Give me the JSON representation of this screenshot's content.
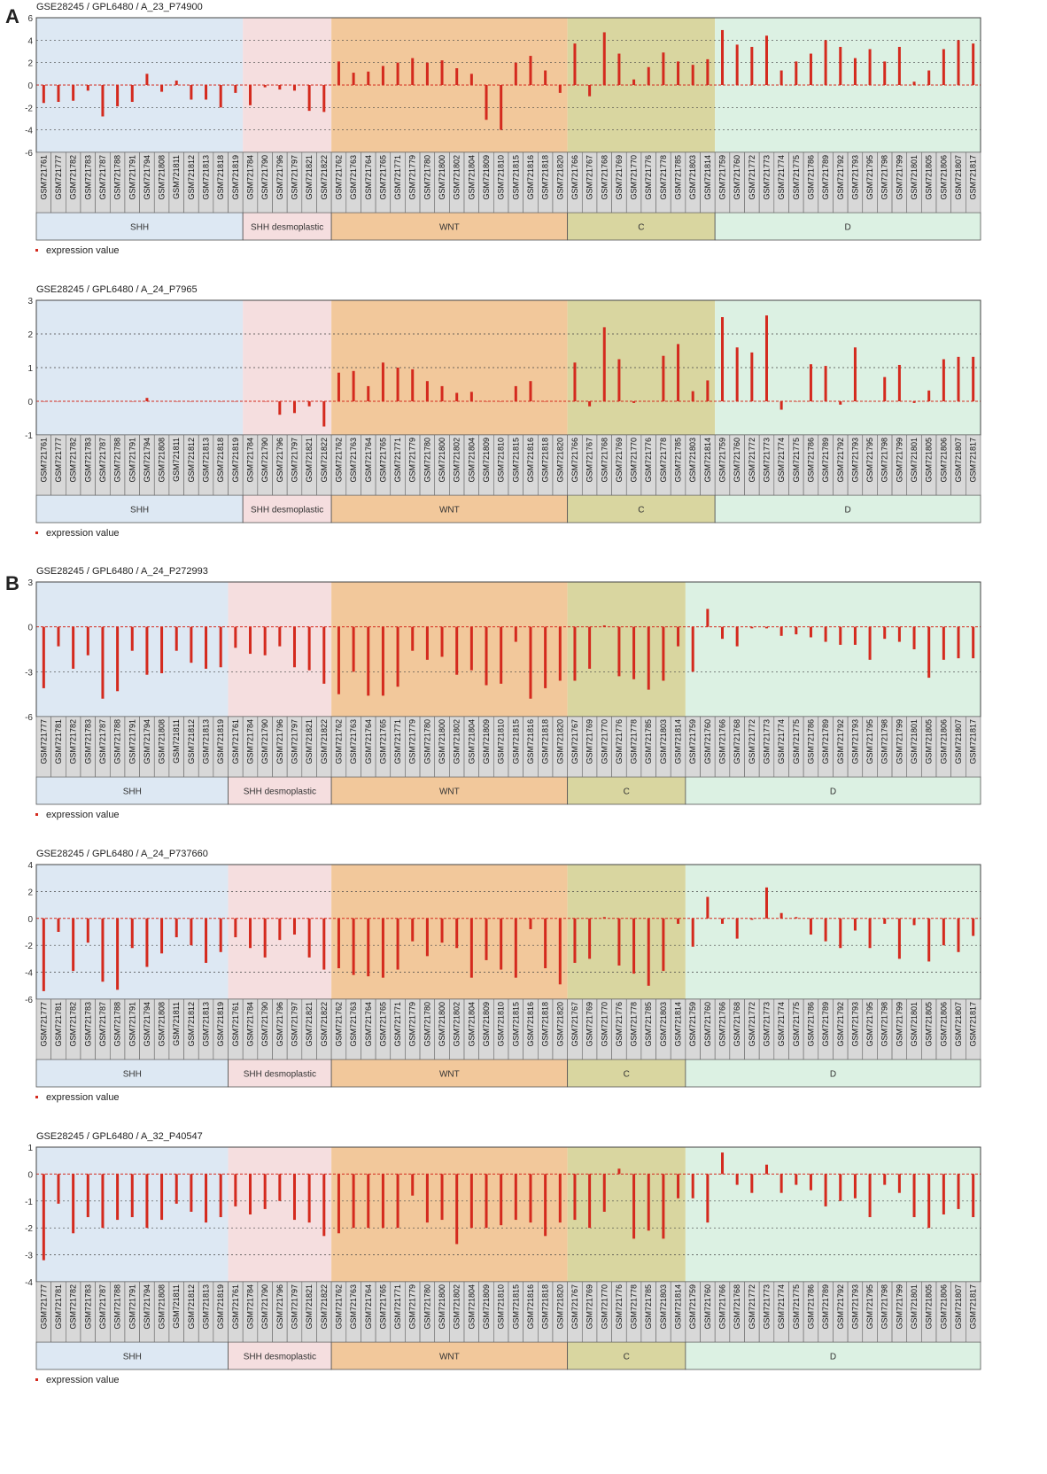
{
  "panel_labels": [
    "A",
    "B"
  ],
  "group_colors": {
    "SHH": "#dde8f3",
    "SHH desmoplastic": "#f5dedf",
    "WNT": "#f2c89b",
    "C": "#d9d6a0",
    "D": "#dcf1e3"
  },
  "bar_color": "#d42a1e",
  "chart_data": [
    {
      "type": "bar",
      "title": "GSE28245 / GPL6480 / A_23_P74900",
      "legend": "expression value",
      "ylim": [
        -6,
        6
      ],
      "yticks": [
        -6,
        -4,
        -2,
        0,
        2,
        4,
        6
      ],
      "groups": [
        {
          "name": "SHH",
          "count": 14
        },
        {
          "name": "SHH desmoplastic",
          "count": 6
        },
        {
          "name": "WNT",
          "count": 16
        },
        {
          "name": "C",
          "count": 10
        },
        {
          "name": "D",
          "count": 18
        }
      ],
      "categories": [
        "GSM721761",
        "GSM721777",
        "GSM721782",
        "GSM721783",
        "GSM721787",
        "GSM721788",
        "GSM721791",
        "GSM721794",
        "GSM721808",
        "GSM721811",
        "GSM721812",
        "GSM721813",
        "GSM721818",
        "GSM721819",
        "GSM721784",
        "GSM721790",
        "GSM721796",
        "GSM721797",
        "GSM721821",
        "GSM721822",
        "GSM721762",
        "GSM721763",
        "GSM721764",
        "GSM721765",
        "GSM721771",
        "GSM721779",
        "GSM721780",
        "GSM721800",
        "GSM721802",
        "GSM721804",
        "GSM721809",
        "GSM721810",
        "GSM721815",
        "GSM721816",
        "GSM721818",
        "GSM721820",
        "GSM721766",
        "GSM721767",
        "GSM721768",
        "GSM721769",
        "GSM721770",
        "GSM721776",
        "GSM721778",
        "GSM721785",
        "GSM721803",
        "GSM721814",
        "GSM721759",
        "GSM721760",
        "GSM721772",
        "GSM721773",
        "GSM721774",
        "GSM721775",
        "GSM721786",
        "GSM721789",
        "GSM721792",
        "GSM721793",
        "GSM721795",
        "GSM721798",
        "GSM721799",
        "GSM721801",
        "GSM721805",
        "GSM721806",
        "GSM721807",
        "GSM721817"
      ],
      "values": [
        -1.6,
        -1.5,
        -1.4,
        -0.5,
        -2.8,
        -1.9,
        -1.5,
        1.0,
        -0.6,
        0.4,
        -1.3,
        -1.3,
        -2.0,
        -0.7,
        -1.8,
        -0.2,
        -0.4,
        -0.5,
        -2.3,
        -2.4,
        2.1,
        1.1,
        1.2,
        1.7,
        2.0,
        2.4,
        2.0,
        2.2,
        1.5,
        1.0,
        -3.1,
        -4.0,
        2.0,
        2.6,
        1.3,
        -0.7,
        3.7,
        -1.0,
        4.7,
        2.8,
        0.5,
        1.6,
        2.9,
        2.1,
        1.8,
        2.3,
        4.9,
        3.6,
        3.4,
        4.4,
        1.3,
        2.1,
        2.8,
        4.0,
        3.4,
        2.4,
        3.2,
        2.1,
        3.4,
        0.3,
        1.3,
        3.2,
        4.0,
        3.7
      ]
    },
    {
      "type": "bar",
      "title": "GSE28245 / GPL6480 / A_24_P7965",
      "legend": "expression value",
      "ylim": [
        -1,
        3
      ],
      "yticks": [
        -1,
        0,
        1,
        2,
        3
      ],
      "groups": [
        {
          "name": "SHH",
          "count": 14
        },
        {
          "name": "SHH desmoplastic",
          "count": 6
        },
        {
          "name": "WNT",
          "count": 16
        },
        {
          "name": "C",
          "count": 10
        },
        {
          "name": "D",
          "count": 18
        }
      ],
      "categories": [
        "GSM721761",
        "GSM721777",
        "GSM721782",
        "GSM721783",
        "GSM721787",
        "GSM721788",
        "GSM721791",
        "GSM721794",
        "GSM721808",
        "GSM721811",
        "GSM721812",
        "GSM721813",
        "GSM721818",
        "GSM721819",
        "GSM721784",
        "GSM721790",
        "GSM721796",
        "GSM721797",
        "GSM721821",
        "GSM721822",
        "GSM721762",
        "GSM721763",
        "GSM721764",
        "GSM721765",
        "GSM721771",
        "GSM721779",
        "GSM721780",
        "GSM721800",
        "GSM721802",
        "GSM721804",
        "GSM721809",
        "GSM721810",
        "GSM721815",
        "GSM721816",
        "GSM721818",
        "GSM721820",
        "GSM721766",
        "GSM721767",
        "GSM721768",
        "GSM721769",
        "GSM721770",
        "GSM721776",
        "GSM721778",
        "GSM721785",
        "GSM721803",
        "GSM721814",
        "GSM721759",
        "GSM721760",
        "GSM721772",
        "GSM721773",
        "GSM721774",
        "GSM721775",
        "GSM721786",
        "GSM721789",
        "GSM721792",
        "GSM721793",
        "GSM721795",
        "GSM721798",
        "GSM721799",
        "GSM721801",
        "GSM721805",
        "GSM721806",
        "GSM721807",
        "GSM721817"
      ],
      "values": [
        0,
        0,
        0,
        0,
        0,
        0,
        0,
        0.1,
        0,
        0,
        0,
        0,
        0,
        0,
        0,
        0,
        -0.4,
        -0.35,
        -0.15,
        -0.75,
        0.85,
        0.9,
        0.45,
        1.15,
        1.0,
        0.95,
        0.6,
        0.45,
        0.25,
        0.28,
        0,
        0,
        0.45,
        0.6,
        0,
        0,
        1.15,
        -0.15,
        2.2,
        1.25,
        -0.05,
        0,
        1.35,
        1.7,
        0.3,
        0.62,
        2.5,
        1.6,
        1.45,
        2.55,
        -0.25,
        0,
        1.1,
        1.05,
        -0.1,
        1.6,
        0,
        0.72,
        1.08,
        -0.05,
        0.32,
        1.25,
        1.32,
        1.32
      ]
    },
    {
      "type": "bar",
      "title": "GSE28245 / GPL6480 / A_24_P272993",
      "legend": "expression value",
      "ylim": [
        -6,
        3
      ],
      "yticks": [
        -6,
        -3,
        0,
        3
      ],
      "groups": [
        {
          "name": "SHH",
          "count": 13
        },
        {
          "name": "SHH desmoplastic",
          "count": 7
        },
        {
          "name": "WNT",
          "count": 16
        },
        {
          "name": "C",
          "count": 8
        },
        {
          "name": "D",
          "count": 20
        }
      ],
      "categories": [
        "GSM721777",
        "GSM721781",
        "GSM721782",
        "GSM721783",
        "GSM721787",
        "GSM721788",
        "GSM721791",
        "GSM721794",
        "GSM721808",
        "GSM721811",
        "GSM721812",
        "GSM721813",
        "GSM721819",
        "GSM721761",
        "GSM721784",
        "GSM721790",
        "GSM721796",
        "GSM721797",
        "GSM721821",
        "GSM721822",
        "GSM721762",
        "GSM721763",
        "GSM721764",
        "GSM721765",
        "GSM721771",
        "GSM721779",
        "GSM721780",
        "GSM721800",
        "GSM721802",
        "GSM721804",
        "GSM721809",
        "GSM721810",
        "GSM721815",
        "GSM721816",
        "GSM721818",
        "GSM721820",
        "GSM721767",
        "GSM721769",
        "GSM721770",
        "GSM721776",
        "GSM721778",
        "GSM721785",
        "GSM721803",
        "GSM721814",
        "GSM721759",
        "GSM721760",
        "GSM721766",
        "GSM721768",
        "GSM721772",
        "GSM721773",
        "GSM721774",
        "GSM721775",
        "GSM721786",
        "GSM721789",
        "GSM721792",
        "GSM721793",
        "GSM721795",
        "GSM721798",
        "GSM721799",
        "GSM721801",
        "GSM721805",
        "GSM721806",
        "GSM721807",
        "GSM721817"
      ],
      "values": [
        -4.1,
        -1.3,
        -2.8,
        -1.9,
        -4.8,
        -4.3,
        -1.6,
        -3.2,
        -3.1,
        -1.6,
        -2.4,
        -2.8,
        -2.7,
        -1.4,
        -1.8,
        -1.9,
        -1.3,
        -2.7,
        -2.9,
        -3.8,
        -4.5,
        -3.0,
        -4.6,
        -4.6,
        -4.0,
        -1.6,
        -2.2,
        -2.0,
        -3.2,
        -2.9,
        -3.9,
        -3.8,
        -1.0,
        -4.8,
        -4.1,
        -3.6,
        -3.6,
        -2.8,
        0.1,
        -3.3,
        -3.5,
        -4.2,
        -3.6,
        -1.3,
        -3.0,
        1.2,
        -0.8,
        -1.3,
        -0.1,
        -0.1,
        -0.6,
        -0.5,
        -0.7,
        -1.0,
        -1.2,
        -1.2,
        -2.2,
        -0.8,
        -1.0,
        -1.5,
        -3.4,
        -2.2,
        -2.1,
        -2.1
      ]
    },
    {
      "type": "bar",
      "title": "GSE28245 / GPL6480 / A_24_P737660",
      "legend": "expression value",
      "ylim": [
        -6,
        4
      ],
      "yticks": [
        -6,
        -4,
        -2,
        0,
        2,
        4
      ],
      "groups": [
        {
          "name": "SHH",
          "count": 13
        },
        {
          "name": "SHH desmoplastic",
          "count": 7
        },
        {
          "name": "WNT",
          "count": 16
        },
        {
          "name": "C",
          "count": 8
        },
        {
          "name": "D",
          "count": 20
        }
      ],
      "categories": [
        "GSM721777",
        "GSM721781",
        "GSM721782",
        "GSM721783",
        "GSM721787",
        "GSM721788",
        "GSM721791",
        "GSM721794",
        "GSM721808",
        "GSM721811",
        "GSM721812",
        "GSM721813",
        "GSM721819",
        "GSM721761",
        "GSM721784",
        "GSM721790",
        "GSM721796",
        "GSM721797",
        "GSM721821",
        "GSM721822",
        "GSM721762",
        "GSM721763",
        "GSM721764",
        "GSM721765",
        "GSM721771",
        "GSM721779",
        "GSM721780",
        "GSM721800",
        "GSM721802",
        "GSM721804",
        "GSM721809",
        "GSM721810",
        "GSM721815",
        "GSM721816",
        "GSM721818",
        "GSM721820",
        "GSM721767",
        "GSM721769",
        "GSM721770",
        "GSM721776",
        "GSM721778",
        "GSM721785",
        "GSM721803",
        "GSM721814",
        "GSM721759",
        "GSM721760",
        "GSM721766",
        "GSM721768",
        "GSM721772",
        "GSM721773",
        "GSM721774",
        "GSM721775",
        "GSM721786",
        "GSM721789",
        "GSM721792",
        "GSM721793",
        "GSM721795",
        "GSM721798",
        "GSM721799",
        "GSM721801",
        "GSM721805",
        "GSM721806",
        "GSM721807",
        "GSM721817"
      ],
      "values": [
        -5.4,
        -1.0,
        -3.9,
        -1.8,
        -4.7,
        -5.3,
        -2.2,
        -3.6,
        -2.6,
        -1.4,
        -2.0,
        -3.3,
        -2.5,
        -1.4,
        -2.2,
        -2.9,
        -1.6,
        -1.2,
        -2.9,
        -3.8,
        -3.7,
        -4.2,
        -4.3,
        -4.4,
        -3.8,
        -1.7,
        -2.8,
        -1.8,
        -2.2,
        -4.4,
        -3.1,
        -3.8,
        -4.4,
        -0.8,
        -3.7,
        -4.9,
        -3.3,
        -3.0,
        0.1,
        -3.5,
        -4.1,
        -5.0,
        -3.9,
        -0.4,
        -2.1,
        1.6,
        -0.4,
        -1.5,
        -0.1,
        2.3,
        0.4,
        0.1,
        -1.2,
        -1.7,
        -2.2,
        -0.9,
        -2.2,
        -0.4,
        -3.0,
        -0.5,
        -3.2,
        -2.0,
        -2.5,
        -1.3
      ]
    },
    {
      "type": "bar",
      "title": "GSE28245 / GPL6480 / A_32_P40547",
      "legend": "expression value",
      "ylim": [
        -4,
        1
      ],
      "yticks": [
        -4,
        -3,
        -2,
        -1,
        0,
        1
      ],
      "groups": [
        {
          "name": "SHH",
          "count": 13
        },
        {
          "name": "SHH desmoplastic",
          "count": 7
        },
        {
          "name": "WNT",
          "count": 16
        },
        {
          "name": "C",
          "count": 8
        },
        {
          "name": "D",
          "count": 20
        }
      ],
      "categories": [
        "GSM721777",
        "GSM721781",
        "GSM721782",
        "GSM721783",
        "GSM721787",
        "GSM721788",
        "GSM721791",
        "GSM721794",
        "GSM721808",
        "GSM721811",
        "GSM721812",
        "GSM721813",
        "GSM721819",
        "GSM721761",
        "GSM721784",
        "GSM721790",
        "GSM721796",
        "GSM721797",
        "GSM721821",
        "GSM721822",
        "GSM721762",
        "GSM721763",
        "GSM721764",
        "GSM721765",
        "GSM721771",
        "GSM721779",
        "GSM721780",
        "GSM721800",
        "GSM721802",
        "GSM721804",
        "GSM721809",
        "GSM721810",
        "GSM721815",
        "GSM721816",
        "GSM721818",
        "GSM721820",
        "GSM721767",
        "GSM721769",
        "GSM721770",
        "GSM721776",
        "GSM721778",
        "GSM721785",
        "GSM721803",
        "GSM721814",
        "GSM721759",
        "GSM721760",
        "GSM721766",
        "GSM721768",
        "GSM721772",
        "GSM721773",
        "GSM721774",
        "GSM721775",
        "GSM721786",
        "GSM721789",
        "GSM721792",
        "GSM721793",
        "GSM721795",
        "GSM721798",
        "GSM721799",
        "GSM721801",
        "GSM721805",
        "GSM721806",
        "GSM721807",
        "GSM721817"
      ],
      "values": [
        -3.2,
        -1.1,
        -2.2,
        -1.6,
        -2.0,
        -1.7,
        -1.6,
        -2.0,
        -1.7,
        -1.1,
        -1.4,
        -1.8,
        -1.6,
        -1.2,
        -1.5,
        -1.3,
        -1.0,
        -1.7,
        -1.8,
        -2.3,
        -2.2,
        -2.0,
        -2.0,
        -2.0,
        -2.0,
        -0.8,
        -1.8,
        -1.7,
        -2.6,
        -2.0,
        -2.0,
        -1.9,
        -1.7,
        -1.8,
        -2.3,
        -1.8,
        -1.7,
        -2.0,
        -1.4,
        0.2,
        -2.4,
        -2.1,
        -2.4,
        -0.9,
        -0.9,
        -1.8,
        0.8,
        -0.4,
        -0.7,
        0.35,
        -0.7,
        -0.4,
        -0.6,
        -1.2,
        -1.0,
        -0.9,
        -1.6,
        -0.4,
        -0.7,
        -1.6,
        -2.0,
        -1.5,
        -1.3,
        -1.6
      ]
    }
  ]
}
